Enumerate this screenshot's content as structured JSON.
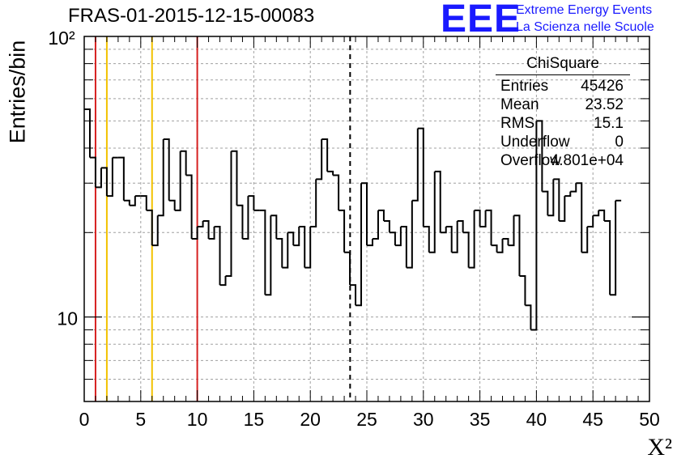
{
  "title": "FRAS-01-2015-12-15-00083",
  "logo": {
    "mark": "EEE",
    "line1": "Extreme Energy Events",
    "line2": "La Scienza nelle Scuole"
  },
  "stats": {
    "title": "ChiSquare",
    "rows": [
      {
        "key": "Entries",
        "value": "45426"
      },
      {
        "key": "Mean",
        "value": "23.52"
      },
      {
        "key": "RMS",
        "value": "15.1"
      },
      {
        "key": "Underflow",
        "value": "0"
      },
      {
        "key": "Overflow",
        "value": "4.801e+04"
      }
    ]
  },
  "chart_data": {
    "type": "histogram",
    "xlabel": "X²",
    "ylabel": "Entries/bin",
    "xlim": [
      0,
      50
    ],
    "ylim": [
      5,
      100
    ],
    "yscale": "log",
    "xticks": [
      0,
      5,
      10,
      15,
      20,
      25,
      30,
      35,
      40,
      45,
      50
    ],
    "yticks_labeled": [
      {
        "value": 10,
        "label": "10"
      },
      {
        "value": 100,
        "label": "10²"
      }
    ],
    "grid": true,
    "bin_width": 0.5,
    "values": [
      55,
      37,
      29,
      34,
      27,
      37,
      37,
      26,
      25,
      27,
      27,
      24,
      18,
      23,
      43,
      26,
      24,
      39,
      32,
      19,
      21,
      22,
      19,
      21,
      13,
      14,
      39,
      25,
      19,
      27,
      24,
      24,
      12,
      23,
      19,
      15,
      20,
      18,
      21,
      15,
      21,
      31,
      43,
      33,
      32,
      24,
      17,
      13,
      11,
      30,
      18,
      19,
      24,
      22,
      20,
      18,
      21,
      15,
      26,
      47,
      21,
      17,
      33,
      20,
      21,
      17,
      22,
      20,
      15,
      24,
      21,
      24,
      18,
      17,
      19,
      18,
      23,
      14,
      11,
      9,
      50,
      28,
      23,
      31,
      22,
      27,
      28,
      30,
      17,
      21,
      23,
      24,
      22,
      12,
      26
    ],
    "vlines": [
      {
        "x": 1,
        "color": "#d62020",
        "style": "solid"
      },
      {
        "x": 2,
        "color": "#f2c200",
        "style": "solid"
      },
      {
        "x": 6,
        "color": "#f2c200",
        "style": "solid"
      },
      {
        "x": 10,
        "color": "#d62020",
        "style": "solid"
      },
      {
        "x": 23.52,
        "color": "#000000",
        "style": "dashed"
      }
    ]
  }
}
